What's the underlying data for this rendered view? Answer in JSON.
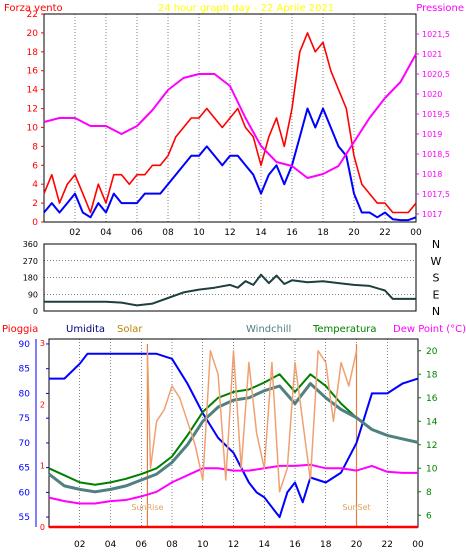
{
  "title": "24 hour graph day - 22 Aprile 2021",
  "colors": {
    "wind": "#ff0000",
    "windAvg": "#0000ff",
    "pressure": "#ff00ff",
    "direction": "#1f3f3f",
    "humidity": "#0000ff",
    "solar": "#f0a070",
    "windchill": "#508080",
    "temperature": "#008000",
    "dewpoint": "#ff00ff",
    "rain": "#ff0000",
    "axisLeft": "#ff0000",
    "axisRight": "#ff00ff",
    "grid": "#000000",
    "titleColor": "#ffff00"
  },
  "chart_data": [
    {
      "type": "line",
      "name": "wind-pressure",
      "title": "24 hour graph day - 22 Aprile 2021",
      "ylabel_left": "Forza vento  ",
      "ylabel_right": "Pressione",
      "x_ticks": [
        "02",
        "04",
        "06",
        "08",
        "10",
        "12",
        "14",
        "16",
        "18",
        "20",
        "22",
        "00"
      ],
      "y_left_ticks": [
        "0",
        "2",
        "4",
        "6",
        "8",
        "10",
        "12",
        "14",
        "16",
        "18",
        "20",
        "22"
      ],
      "y_right_ticks": [
        "1017",
        "1017,5",
        "1018",
        "1018,5",
        "1019",
        "1019,5",
        "1020",
        "1020,5",
        "1021",
        "1021,5"
      ],
      "xlim": [
        0,
        24
      ],
      "ylim_left": [
        0,
        22
      ],
      "ylim_right": [
        1016.8,
        1022
      ],
      "series": [
        {
          "name": "Forza vento",
          "role": "wind_max",
          "x": [
            0,
            0.5,
            1,
            1.5,
            2,
            2.5,
            3,
            3.5,
            4,
            4.5,
            5,
            5.5,
            6,
            6.5,
            7,
            7.5,
            8,
            8.5,
            9,
            9.5,
            10,
            10.5,
            11,
            11.5,
            12,
            12.5,
            13,
            13.5,
            14,
            14.5,
            15,
            15.5,
            16,
            16.5,
            17,
            17.5,
            18,
            18.5,
            19,
            19.5,
            20,
            20.5,
            21,
            21.5,
            22,
            22.5,
            23,
            23.5,
            24
          ],
          "values": [
            3,
            5,
            2,
            4,
            5,
            3,
            1,
            4,
            2,
            5,
            5,
            4,
            5,
            5,
            6,
            6,
            7,
            9,
            10,
            11,
            11,
            12,
            11,
            10,
            11,
            12,
            10,
            9,
            6,
            9,
            11,
            8,
            12,
            18,
            20,
            18,
            19,
            16,
            14,
            12,
            7,
            4,
            3,
            2,
            2,
            1,
            1,
            1,
            2
          ]
        },
        {
          "name": "Forza vento media",
          "role": "wind_avg",
          "x": [
            0,
            0.5,
            1,
            1.5,
            2,
            2.5,
            3,
            3.5,
            4,
            4.5,
            5,
            5.5,
            6,
            6.5,
            7,
            7.5,
            8,
            8.5,
            9,
            9.5,
            10,
            10.5,
            11,
            11.5,
            12,
            12.5,
            13,
            13.5,
            14,
            14.5,
            15,
            15.5,
            16,
            16.5,
            17,
            17.5,
            18,
            18.5,
            19,
            19.5,
            20,
            20.5,
            21,
            21.5,
            22,
            22.5,
            23,
            23.5,
            24
          ],
          "values": [
            1,
            2,
            1,
            2,
            3,
            1,
            0.5,
            2,
            1,
            3,
            2,
            2,
            2,
            3,
            3,
            3,
            4,
            5,
            6,
            7,
            7,
            8,
            7,
            6,
            7,
            7,
            6,
            5,
            3,
            5,
            6,
            4,
            6,
            9,
            12,
            10,
            12,
            10,
            8,
            7,
            3,
            1,
            1,
            0.5,
            1,
            0.3,
            0.2,
            0.2,
            0.5
          ]
        },
        {
          "name": "Pressione",
          "role": "pressure",
          "axis": "right",
          "x": [
            0,
            1,
            2,
            3,
            4,
            5,
            6,
            7,
            8,
            9,
            10,
            11,
            12,
            13,
            14,
            15,
            16,
            17,
            18,
            19,
            20,
            21,
            22,
            23,
            24
          ],
          "values": [
            1019.3,
            1019.4,
            1019.4,
            1019.2,
            1019.2,
            1019.0,
            1019.2,
            1019.6,
            1020.1,
            1020.4,
            1020.5,
            1020.5,
            1020.2,
            1019.4,
            1018.7,
            1018.3,
            1018.2,
            1017.9,
            1018.0,
            1018.2,
            1018.8,
            1019.4,
            1019.9,
            1020.3,
            1021.0
          ]
        }
      ]
    },
    {
      "type": "line",
      "name": "wind-direction",
      "y_left_ticks": [
        "0",
        "90",
        "180",
        "270",
        "360"
      ],
      "y_right_ticks": [
        "N",
        "E",
        "S",
        "W",
        "N"
      ],
      "xlim": [
        0,
        24
      ],
      "ylim": [
        0,
        360
      ],
      "series": [
        {
          "name": "Direzione vento",
          "x": [
            0,
            1,
            2,
            3,
            4,
            5,
            6,
            7,
            8,
            9,
            10,
            11,
            12,
            12.5,
            13,
            13.5,
            14,
            14.5,
            15,
            15.5,
            16,
            17,
            18,
            19,
            20,
            21,
            22,
            22.5,
            23,
            24
          ],
          "values": [
            50,
            50,
            50,
            50,
            50,
            45,
            30,
            40,
            70,
            100,
            115,
            125,
            140,
            125,
            160,
            140,
            195,
            150,
            190,
            145,
            165,
            155,
            160,
            150,
            140,
            135,
            110,
            65,
            65,
            65
          ]
        }
      ]
    },
    {
      "type": "line",
      "name": "temp-humidity",
      "header_labels": [
        "Pioggia",
        "Umidita",
        "Solar",
        "Windchill",
        "Temperatura",
        "Dew Point (°C)"
      ],
      "sunrise_label": "SunRise",
      "sunset_label": "SunSet",
      "sunrise_hour": 6.4,
      "sunset_hour": 20.0,
      "y_left_ticks": [
        "55",
        "60",
        "65",
        "70",
        "75",
        "80",
        "85",
        "90"
      ],
      "y_rain_ticks": [
        "0",
        "1",
        "2",
        "3"
      ],
      "y_right_ticks": [
        "6",
        "8",
        "10",
        "12",
        "14",
        "16",
        "18",
        "20"
      ],
      "ylim_left": [
        53,
        91
      ],
      "ylim_right": [
        5,
        21
      ],
      "series": [
        {
          "name": "Umidita",
          "axis": "left",
          "x": [
            0,
            1,
            2,
            2.5,
            3,
            4,
            5,
            6,
            7,
            8,
            9,
            10,
            11,
            12,
            13,
            13.5,
            14,
            14.5,
            15,
            15.5,
            16,
            16.5,
            17,
            18,
            19,
            20,
            21,
            22,
            23,
            24
          ],
          "values": [
            83,
            83,
            86,
            88,
            88,
            88,
            88,
            88,
            88,
            87,
            82,
            76,
            71,
            68,
            62,
            60,
            59,
            57,
            55,
            60,
            62,
            58,
            63,
            62,
            64,
            70,
            80,
            80,
            82,
            83
          ]
        },
        {
          "name": "Temperatura",
          "axis": "right",
          "x": [
            0,
            1,
            2,
            3,
            4,
            5,
            6,
            7,
            8,
            9,
            10,
            11,
            12,
            13,
            14,
            15,
            16,
            17,
            18,
            19,
            20,
            21,
            22,
            23,
            24
          ],
          "values": [
            10.0,
            9.4,
            8.8,
            8.6,
            8.8,
            9.1,
            9.5,
            10.0,
            11.0,
            12.8,
            14.8,
            16.0,
            16.5,
            16.7,
            17.3,
            18.0,
            16.5,
            18.0,
            17.0,
            15.5,
            14.3,
            13.3,
            12.8,
            12.5,
            12.2
          ]
        },
        {
          "name": "Windchill",
          "axis": "right",
          "x": [
            0,
            1,
            2,
            3,
            4,
            5,
            6,
            7,
            8,
            9,
            10,
            11,
            12,
            13,
            14,
            15,
            16,
            17,
            18,
            19,
            20,
            21,
            22,
            23,
            24
          ],
          "values": [
            9.5,
            8.5,
            8.2,
            8.0,
            8.2,
            8.5,
            9.0,
            9.5,
            10.5,
            12.0,
            14.0,
            15.2,
            15.8,
            16.0,
            16.6,
            17.0,
            15.5,
            17.2,
            16.0,
            15.0,
            14.3,
            13.3,
            12.8,
            12.5,
            12.2
          ]
        },
        {
          "name": "Dew Point",
          "axis": "right",
          "x": [
            0,
            1,
            2,
            3,
            4,
            5,
            6,
            7,
            8,
            9,
            10,
            11,
            12,
            13,
            14,
            15,
            16,
            17,
            18,
            19,
            20,
            21,
            22,
            23,
            24
          ],
          "values": [
            7.5,
            7.2,
            7.0,
            7.0,
            7.2,
            7.3,
            7.6,
            8.0,
            8.8,
            9.4,
            10.0,
            10.0,
            9.8,
            9.8,
            10.0,
            10.2,
            10.2,
            10.3,
            10.0,
            10.0,
            9.8,
            10.2,
            9.7,
            9.6,
            9.6
          ]
        },
        {
          "name": "Solar",
          "axis": "right",
          "x": [
            6.4,
            6.6,
            7,
            7.5,
            8,
            8.5,
            9,
            9.5,
            10,
            10.5,
            11,
            11.5,
            12,
            12.5,
            13,
            13.5,
            14,
            14.5,
            15,
            15.5,
            16,
            16.5,
            17,
            17.5,
            18,
            18.5,
            19,
            19.5,
            20
          ],
          "values": [
            20,
            10,
            14,
            15,
            17,
            16,
            14,
            12,
            9,
            20,
            18,
            9,
            20,
            10,
            19,
            13,
            10,
            19,
            8,
            10,
            19,
            14,
            9,
            20,
            19,
            14,
            19,
            17,
            20
          ]
        },
        {
          "name": "Pioggia",
          "axis": "rain",
          "x": [
            0,
            24
          ],
          "values": [
            0,
            0
          ]
        }
      ]
    }
  ]
}
